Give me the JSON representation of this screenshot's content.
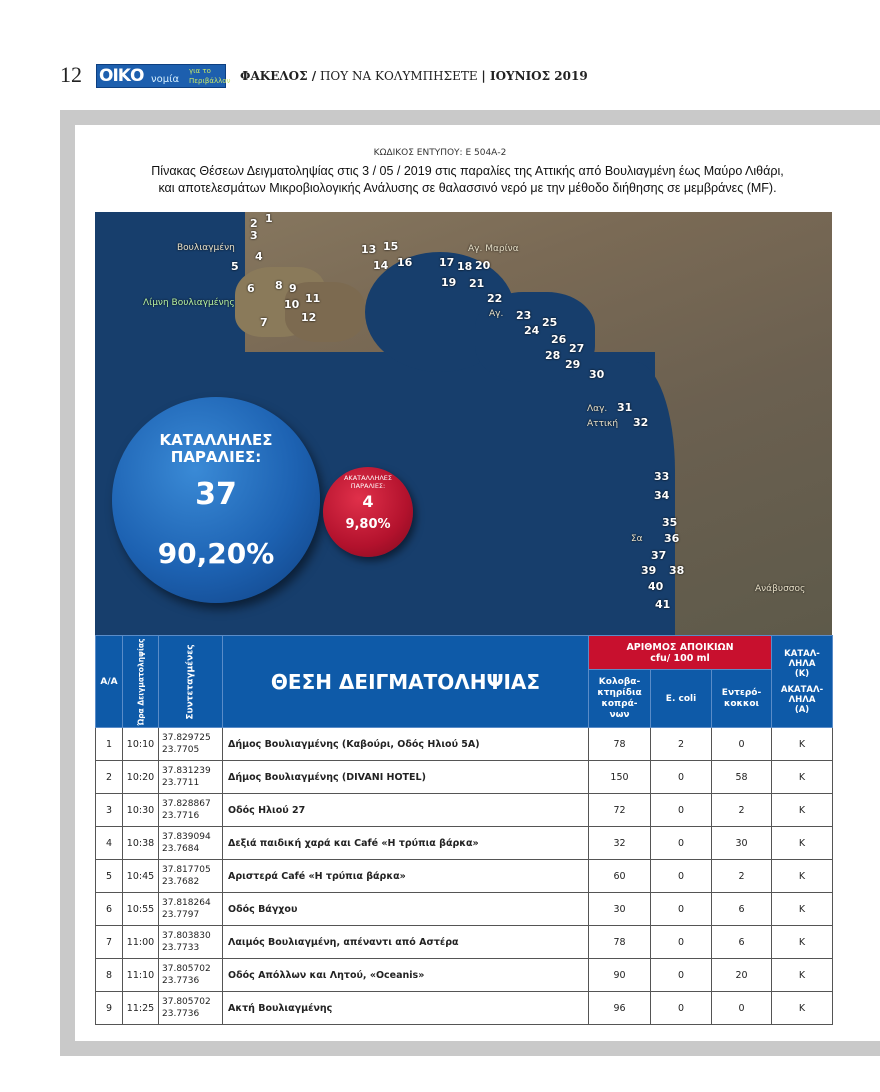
{
  "header": {
    "page_number": "12",
    "logo_main": "ΟΙΚΟ",
    "logo_sub": "νομία",
    "logo_tag": "για το Περιβάλλον",
    "section": "ΦΑΚΕΛΟΣ /",
    "subject": " ΠΟΥ ΝΑ ΚΟΛΥΜΠΗΣΕΤΕ ",
    "issue": "| ΙΟΥΝΙΟΣ 2019"
  },
  "form_code": "ΚΩΔΙΚΟΣ ΕΝΤΥΠΟΥ: Ε 504Α-2",
  "title_line1": "Πίνακας Θέσεων Δειγματοληψίας στις 3 / 05 / 2019 στις παραλίες της Αττικής από Βουλιαγμένη έως Μαύρο Λιθάρι,",
  "title_line2": "και αποτελεσμάτων Μικροβιολογικής Ανάλυσης σε θαλασσινό νερό με την μέθοδο διήθησης σε μεμβράνες (MF).",
  "map": {
    "point_labels": [
      "1",
      "2",
      "3",
      "4",
      "5",
      "6",
      "7",
      "8",
      "9",
      "10",
      "11",
      "12",
      "13",
      "14",
      "15",
      "16",
      "17",
      "18",
      "19",
      "20",
      "21",
      "22",
      "23",
      "24",
      "25",
      "26",
      "27",
      "28",
      "29",
      "30",
      "31",
      "32",
      "33",
      "34",
      "35",
      "36",
      "37",
      "38",
      "39",
      "40",
      "41"
    ],
    "places": [
      "Βουλιαγμένη",
      "Λίμνη Βουλιαγμένης",
      "Αγ. Μαρίνα",
      "Αγ.",
      "Λαγ.",
      "Αττική",
      "Σα",
      "Ανάβυσσος"
    ]
  },
  "suitable": {
    "label": "ΚΑΤΑΛΛΗΛΕΣ ΠΑΡΑΛΙΕΣ:",
    "count": "37",
    "percent": "90,20%",
    "color": "#1d62b2"
  },
  "unsuitable": {
    "label": "ΑΚΑΤΑΛΛΗΛΕΣ ΠΑΡΑΛΙΕΣ:",
    "count": "4",
    "percent": "9,80%",
    "color": "#b3122d"
  },
  "table": {
    "headers": {
      "aa": "Α/Α",
      "time": "Ώρα Δειγματοληψίας",
      "coords": "Συντεταγμένες",
      "location": "ΘΕΣΗ ΔΕΙΓΜΑΤΟΛΗΨΙΑΣ",
      "colonies": "ΑΡΙΘΜΟΣ ΑΠΟΙΚΙΩΝ cfu/ 100 ml",
      "coliforms": "Κολοβα-κτηρίδια κοπρά-νων",
      "ecoli": "E. coli",
      "enterococci": "Εντερό-κοκκοι",
      "suit_top": "ΚΑΤΑΛ-ΛΗΛΑ (Κ)",
      "suit_bottom": "ΑΚΑΤΑΛ-ΛΗΛΑ (Α)"
    },
    "rows": [
      {
        "aa": "1",
        "time": "10:10",
        "lat": "37.829725",
        "lon": "23.7705",
        "location": "Δήμος Βουλιαγμένης (Καβούρι, Οδός Ηλιού 5Α)",
        "coliforms": "78",
        "ecoli": "2",
        "entero": "0",
        "result": "Κ"
      },
      {
        "aa": "2",
        "time": "10:20",
        "lat": "37.831239",
        "lon": "23.7711",
        "location": "Δήμος Βουλιαγμένης (DIVANI HOTEL)",
        "coliforms": "150",
        "ecoli": "0",
        "entero": "58",
        "result": "Κ"
      },
      {
        "aa": "3",
        "time": "10:30",
        "lat": "37.828867",
        "lon": "23.7716",
        "location": "Οδός Ηλιού 27",
        "coliforms": "72",
        "ecoli": "0",
        "entero": "2",
        "result": "Κ"
      },
      {
        "aa": "4",
        "time": "10:38",
        "lat": "37.839094",
        "lon": "23.7684",
        "location": "Δεξιά παιδική χαρά και Café «Η τρύπια βάρκα»",
        "coliforms": "32",
        "ecoli": "0",
        "entero": "30",
        "result": "Κ"
      },
      {
        "aa": "5",
        "time": "10:45",
        "lat": "37.817705",
        "lon": "23.7682",
        "location": "Αριστερά Café «Η τρύπια βάρκα»",
        "coliforms": "60",
        "ecoli": "0",
        "entero": "2",
        "result": "Κ"
      },
      {
        "aa": "6",
        "time": "10:55",
        "lat": "37.818264",
        "lon": "23.7797",
        "location": "Οδός Βάγχου",
        "coliforms": "30",
        "ecoli": "0",
        "entero": "6",
        "result": "Κ"
      },
      {
        "aa": "7",
        "time": "11:00",
        "lat": "37.803830",
        "lon": "23.7733",
        "location": "Λαιμός Βουλιαγμένη, απέναντι από Αστέρα",
        "coliforms": "78",
        "ecoli": "0",
        "entero": "6",
        "result": "Κ"
      },
      {
        "aa": "8",
        "time": "11:10",
        "lat": "37.805702",
        "lon": "23.7736",
        "location": "Οδός Απόλλων και Λητού, «Oceanis»",
        "coliforms": "90",
        "ecoli": "0",
        "entero": "20",
        "result": "Κ"
      },
      {
        "aa": "9",
        "time": "11:25",
        "lat": "37.805702",
        "lon": "23.7736",
        "location": "Ακτή Βουλιαγμένης",
        "coliforms": "96",
        "ecoli": "0",
        "entero": "0",
        "result": "Κ"
      }
    ]
  }
}
